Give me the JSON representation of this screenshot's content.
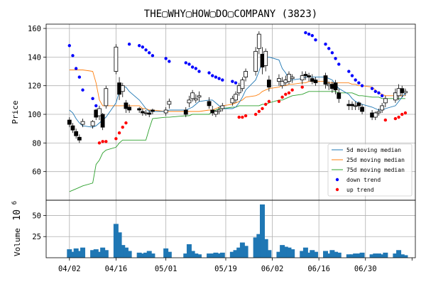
{
  "chart_data": {
    "type": "candlestick",
    "title": "THE▢WHY▢HOW▢DO▢COMPANY (3823)",
    "x_tick_labels": [
      "04/02",
      "04/16",
      "05/01",
      "05/19",
      "06/02",
      "06/16",
      "06/30"
    ],
    "x_tick_dates": [
      "2018-04-02",
      "2018-04-16",
      "2018-05-01",
      "2018-05-19",
      "2018-06-02",
      "2018-06-16",
      "2018-06-30"
    ],
    "dates": [
      "2018-04-02",
      "2018-04-03",
      "2018-04-04",
      "2018-04-05",
      "2018-04-06",
      "2018-04-09",
      "2018-04-10",
      "2018-04-11",
      "2018-04-12",
      "2018-04-13",
      "2018-04-16",
      "2018-04-17",
      "2018-04-18",
      "2018-04-19",
      "2018-04-20",
      "2018-04-23",
      "2018-04-24",
      "2018-04-25",
      "2018-04-26",
      "2018-04-27",
      "2018-05-01",
      "2018-05-02",
      "2018-05-07",
      "2018-05-08",
      "2018-05-09",
      "2018-05-10",
      "2018-05-11",
      "2018-05-14",
      "2018-05-15",
      "2018-05-16",
      "2018-05-17",
      "2018-05-18",
      "2018-05-21",
      "2018-05-22",
      "2018-05-23",
      "2018-05-24",
      "2018-05-25",
      "2018-05-28",
      "2018-05-29",
      "2018-05-30",
      "2018-05-31",
      "2018-06-01",
      "2018-06-04",
      "2018-06-05",
      "2018-06-06",
      "2018-06-07",
      "2018-06-08",
      "2018-06-11",
      "2018-06-12",
      "2018-06-13",
      "2018-06-14",
      "2018-06-15",
      "2018-06-18",
      "2018-06-19",
      "2018-06-20",
      "2018-06-21",
      "2018-06-22",
      "2018-06-25",
      "2018-06-26",
      "2018-06-27",
      "2018-06-28",
      "2018-06-29",
      "2018-07-02",
      "2018-07-03",
      "2018-07-04",
      "2018-07-05",
      "2018-07-06",
      "2018-07-09",
      "2018-07-10",
      "2018-07-11",
      "2018-07-12"
    ],
    "open": [
      96,
      92,
      88,
      84,
      93,
      92,
      103,
      99,
      100,
      106,
      130,
      122,
      116,
      108,
      105,
      104,
      102,
      101,
      101,
      103,
      101,
      107,
      103,
      108,
      111,
      110,
      112,
      109,
      103,
      100,
      102,
      104,
      108,
      110,
      115,
      118,
      126,
      130,
      146,
      142,
      134,
      124,
      123,
      120,
      122,
      123,
      125,
      124,
      128,
      127,
      125,
      124,
      127,
      120,
      121,
      122,
      115,
      107,
      107,
      106,
      108,
      105,
      101,
      98,
      101,
      103,
      108,
      110,
      113,
      118,
      115
    ],
    "close": [
      93,
      89,
      85,
      82,
      95,
      95,
      98,
      104,
      91,
      118,
      147,
      114,
      120,
      104,
      103,
      103,
      101,
      101,
      100,
      102,
      103,
      109,
      100,
      110,
      115,
      111,
      113,
      106,
      101,
      102,
      103,
      106,
      111,
      114,
      120,
      124,
      130,
      144,
      156,
      133,
      144,
      119,
      125,
      123,
      124,
      128,
      126,
      127,
      127,
      126,
      123,
      122,
      121,
      121,
      118,
      117,
      111,
      106,
      106,
      106,
      106,
      102,
      98,
      101,
      102,
      106,
      111,
      115,
      118,
      115,
      116
    ],
    "high": [
      98,
      94,
      90,
      86,
      97,
      96,
      104,
      106,
      101,
      120,
      149,
      126,
      122,
      110,
      107,
      105,
      104,
      103,
      103,
      104,
      105,
      111,
      105,
      113,
      117,
      114,
      116,
      112,
      106,
      103,
      105,
      108,
      113,
      116,
      122,
      126,
      132,
      147,
      158,
      147,
      146,
      127,
      128,
      126,
      127,
      130,
      128,
      130,
      130,
      129,
      128,
      126,
      129,
      123,
      123,
      124,
      118,
      110,
      109,
      109,
      109,
      107,
      103,
      102,
      104,
      108,
      113,
      118,
      121,
      120,
      118
    ],
    "low": [
      91,
      87,
      83,
      80,
      91,
      90,
      96,
      96,
      89,
      104,
      128,
      110,
      112,
      101,
      101,
      101,
      99,
      99,
      98,
      100,
      99,
      104,
      98,
      105,
      109,
      108,
      109,
      104,
      99,
      98,
      100,
      102,
      106,
      108,
      113,
      116,
      123,
      127,
      142,
      128,
      130,
      116,
      120,
      118,
      120,
      121,
      122,
      121,
      124,
      123,
      121,
      120,
      118,
      117,
      115,
      114,
      108,
      103,
      103,
      103,
      103,
      100,
      96,
      96,
      99,
      101,
      105,
      108,
      110,
      112,
      113
    ],
    "volume_unit": "10^6",
    "volume": [
      10,
      7,
      11,
      8,
      12,
      9,
      10,
      7,
      12,
      9,
      40,
      30,
      15,
      12,
      8,
      6,
      5,
      6,
      8,
      5,
      11,
      7,
      5,
      16,
      8,
      5,
      4,
      5,
      5,
      6,
      5,
      6,
      7,
      9,
      12,
      18,
      14,
      24,
      28,
      63,
      22,
      9,
      7,
      15,
      13,
      12,
      10,
      8,
      12,
      6,
      9,
      7,
      8,
      5,
      9,
      7,
      6,
      4,
      4,
      5,
      5,
      6,
      4,
      5,
      5,
      4,
      6,
      5,
      9,
      4,
      3
    ],
    "ma5": [
      103,
      101,
      97,
      94,
      92,
      91,
      92,
      94,
      96,
      98,
      108,
      116,
      119,
      119,
      116,
      110,
      107,
      104,
      102,
      102,
      102,
      103,
      103,
      104,
      105,
      107,
      109,
      110,
      110,
      108,
      106,
      104,
      104,
      105,
      108,
      112,
      117,
      124,
      130,
      137,
      140,
      140,
      138,
      132,
      129,
      124,
      124,
      125,
      126,
      126,
      126,
      126,
      126,
      125,
      124,
      121,
      118,
      114,
      111,
      109,
      108,
      107,
      105,
      104,
      103,
      103,
      104,
      106,
      109,
      112,
      115
    ],
    "ma25": [
      131,
      131,
      131,
      131,
      131,
      130,
      122,
      110,
      106,
      106,
      106,
      106,
      106,
      106,
      106,
      106,
      104,
      104,
      103,
      103,
      102,
      102,
      102,
      102,
      102,
      102,
      102,
      103,
      103,
      104,
      105,
      106,
      107,
      108,
      109,
      110,
      112,
      113,
      114,
      116,
      117,
      118,
      119,
      120,
      120,
      121,
      121,
      122,
      122,
      123,
      123,
      123,
      123,
      122,
      122,
      122,
      122,
      122,
      121,
      121,
      120,
      120,
      119,
      117,
      115,
      114,
      113,
      113,
      113,
      113,
      113
    ],
    "ma75": [
      46,
      47,
      48,
      49,
      50,
      52,
      65,
      68,
      73,
      75,
      77,
      80,
      82,
      82,
      82,
      82,
      82,
      82,
      90,
      97,
      98,
      98,
      99,
      99,
      100,
      100,
      100,
      100,
      102,
      103,
      104,
      104,
      105,
      105,
      106,
      106,
      106,
      106,
      106,
      107,
      107,
      108,
      110,
      110,
      111,
      112,
      113,
      114,
      115,
      116,
      116,
      116,
      116,
      116,
      116,
      116,
      115,
      115,
      115,
      114,
      113,
      113,
      112,
      112,
      112,
      111,
      111,
      111,
      111,
      111,
      111
    ],
    "down_trend": [
      148,
      141,
      132,
      126,
      117,
      111,
      106,
      null,
      null,
      null,
      null,
      null,
      null,
      null,
      149,
      148,
      147,
      145,
      143,
      141,
      139,
      137,
      136,
      135,
      133,
      132,
      130,
      129,
      127,
      126,
      125,
      124,
      123,
      122,
      null,
      null,
      null,
      null,
      null,
      null,
      null,
      null,
      null,
      null,
      null,
      null,
      null,
      null,
      157,
      156,
      155,
      152,
      149,
      146,
      143,
      139,
      135,
      130,
      127,
      124,
      122,
      120,
      118,
      116,
      115,
      113,
      null,
      null,
      null,
      null,
      null
    ],
    "up_trend": [
      null,
      null,
      null,
      null,
      null,
      null,
      null,
      80,
      81,
      81,
      83,
      87,
      91,
      94,
      null,
      null,
      null,
      null,
      null,
      null,
      null,
      null,
      null,
      null,
      null,
      null,
      null,
      null,
      null,
      null,
      null,
      null,
      null,
      null,
      98,
      98,
      99,
      100,
      102,
      104,
      107,
      109,
      109,
      112,
      114,
      115,
      117,
      119,
      null,
      null,
      null,
      null,
      null,
      null,
      null,
      null,
      null,
      null,
      null,
      null,
      null,
      null,
      null,
      null,
      null,
      null,
      96,
      97,
      98,
      100,
      101
    ],
    "ylabel": "Price",
    "ylim": [
      40,
      163
    ],
    "y_ticks": [
      60,
      80,
      100,
      120,
      140,
      160
    ],
    "volume_ylabel": "Volume",
    "volume_ylim": [
      0,
      68
    ],
    "volume_ticks": [
      25,
      50
    ],
    "legend": {
      "placement": "lower-right",
      "entries": [
        {
          "label": "5d moving median",
          "kind": "line",
          "color": "#1f77b4"
        },
        {
          "label": "25d moving median",
          "kind": "line",
          "color": "#ff7f0e"
        },
        {
          "label": "75d moving median",
          "kind": "line",
          "color": "#2ca02c"
        },
        {
          "label": "down trend",
          "kind": "marker",
          "color": "#0000ff"
        },
        {
          "label": "up trend",
          "kind": "marker",
          "color": "#ff0000"
        }
      ]
    },
    "colors": {
      "up_candle": "#ffffff",
      "down_candle": "#000000",
      "volume_bar": "#1f77b4",
      "grid": "#b0b0b0"
    },
    "grid": true
  }
}
